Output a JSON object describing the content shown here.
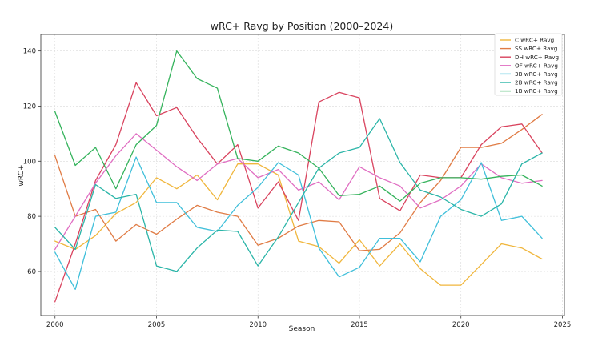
{
  "chart_data": {
    "type": "line",
    "title": "wRC+ Ravg by Position (2000–2024)",
    "xlabel": "Season",
    "ylabel": "wRC+",
    "xlim": [
      1999.3,
      2025.1
    ],
    "ylim": [
      44.0,
      146.0
    ],
    "xticks": [
      2000,
      2005,
      2010,
      2015,
      2020,
      2025
    ],
    "yticks": [
      60,
      80,
      100,
      120,
      140
    ],
    "grid": true,
    "legend": "top-right",
    "x": [
      2000,
      2001,
      2002,
      2003,
      2004,
      2005,
      2006,
      2007,
      2008,
      2009,
      2010,
      2011,
      2012,
      2013,
      2014,
      2015,
      2016,
      2017,
      2018,
      2019,
      2020,
      2021,
      2022,
      2023,
      2024
    ],
    "series": [
      {
        "name": "C wRC+ Ravg",
        "color": "#f0b63c",
        "values": [
          71,
          68,
          73,
          81,
          85,
          94,
          90,
          95,
          86,
          99,
          99,
          95,
          71,
          69,
          63,
          71.5,
          62,
          70,
          61,
          55,
          55,
          62.5,
          70,
          68.5,
          64.5
        ]
      },
      {
        "name": "SS wRC+ Ravg",
        "color": "#e07b44",
        "values": [
          102,
          80,
          82.5,
          71,
          77,
          73.5,
          79,
          84,
          81.5,
          80,
          69.5,
          72,
          76.5,
          78.5,
          78,
          67.5,
          68,
          74,
          85,
          93,
          105,
          105,
          106.5,
          111.5,
          117
        ]
      },
      {
        "name": "DH wRC+ Ravg",
        "color": "#d9435e",
        "values": [
          49,
          70,
          93,
          106,
          128.5,
          116.5,
          119.5,
          108.5,
          99,
          106,
          83,
          92.5,
          78.5,
          121.5,
          125,
          123,
          86.5,
          82,
          95,
          94,
          94,
          106,
          112.5,
          113.5,
          103
        ]
      },
      {
        "name": "OF wRC+ Ravg",
        "color": "#e06ec2",
        "values": [
          68,
          80,
          92,
          102,
          110,
          104,
          98,
          93,
          99,
          101,
          94,
          97,
          89.5,
          92.5,
          86,
          98,
          94,
          91,
          83,
          86,
          91,
          99,
          94,
          92,
          93
        ]
      },
      {
        "name": "3B wRC+ Ravg",
        "color": "#3fbfda",
        "values": [
          67,
          53.5,
          80,
          81.5,
          101.5,
          85,
          85,
          76,
          74.5,
          84,
          90.5,
          99.5,
          95,
          68.5,
          58,
          61.5,
          72,
          72,
          63.5,
          80,
          86,
          99.5,
          78.5,
          80,
          72
        ]
      },
      {
        "name": "2B wRC+ Ravg",
        "color": "#2bb5a8",
        "values": [
          76,
          68,
          91.5,
          86.5,
          88,
          62,
          60,
          68.5,
          75,
          74.5,
          62,
          72.5,
          85,
          97.5,
          103,
          105,
          115.5,
          99.5,
          89.5,
          87,
          82.5,
          80,
          84.5,
          99,
          103
        ]
      },
      {
        "name": "1B wRC+ Ravg",
        "color": "#35b35c",
        "values": [
          118,
          98.5,
          105,
          90,
          106,
          113,
          140,
          130,
          126.5,
          101,
          100,
          105.5,
          103,
          97.5,
          87.5,
          88,
          91,
          85.5,
          92,
          94,
          94,
          93.5,
          94.5,
          95,
          91
        ]
      }
    ]
  }
}
